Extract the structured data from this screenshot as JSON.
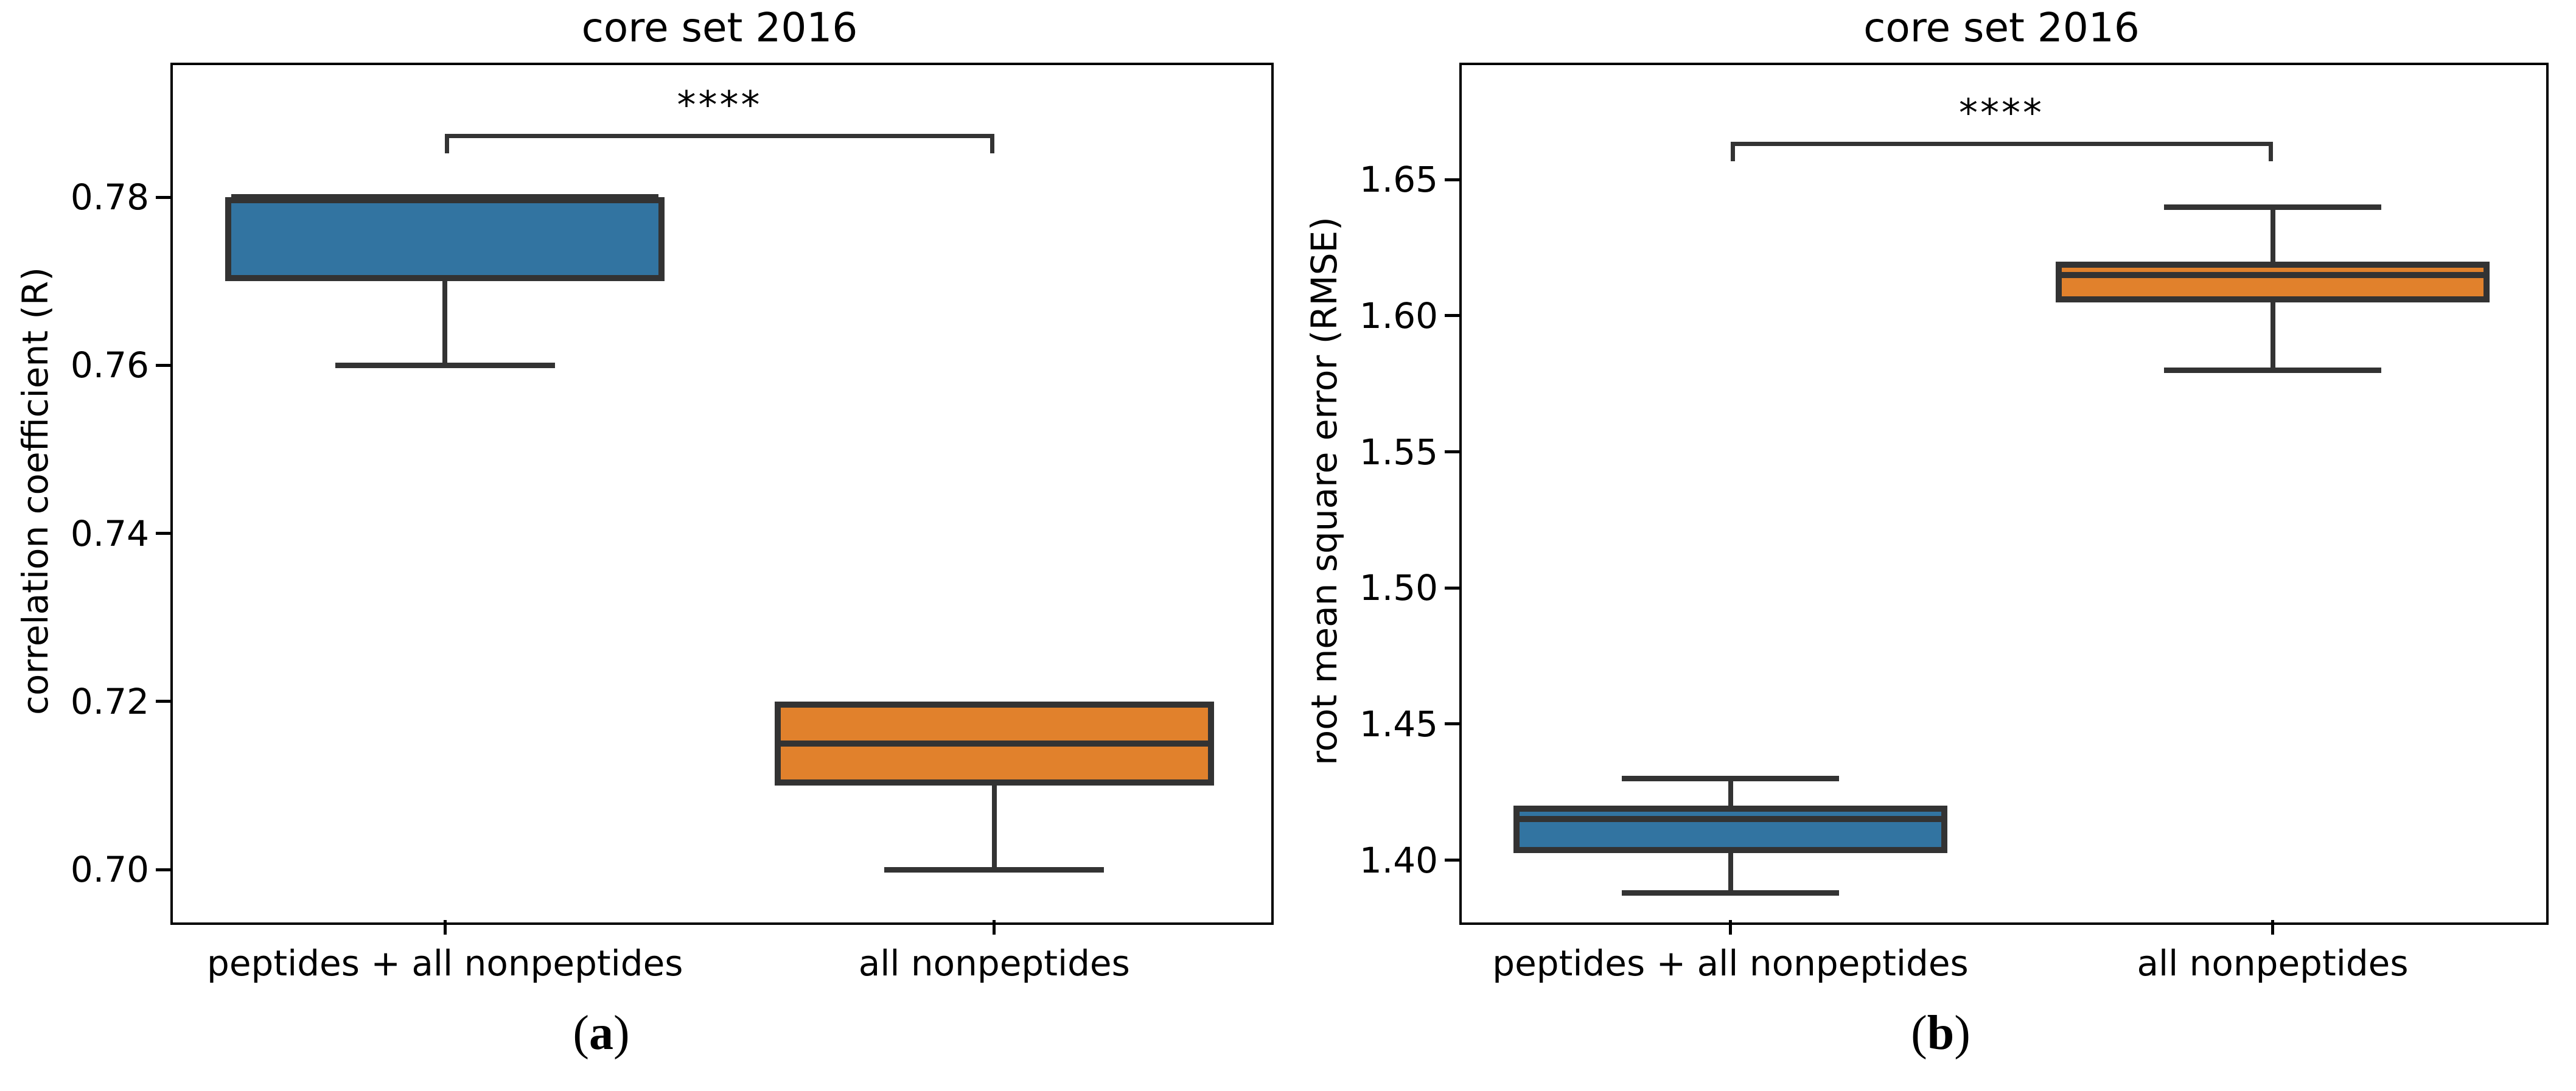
{
  "styles": {
    "background": "#ffffff",
    "box_edge_color": "#333333",
    "spine_color": "#000000",
    "text_color": "#000000",
    "blue_fill": "#3274a1",
    "orange_fill": "#e1812c"
  },
  "chart_data": [
    {
      "type": "box",
      "panel": "a",
      "title": "core set 2016",
      "ylabel": "correlation coefficient (R)",
      "xlabel": "",
      "caption": "(a)",
      "grid": false,
      "legend": "none",
      "categories": [
        "peptides + all nonpeptides",
        "all nonpeptides"
      ],
      "ylim": [
        0.694,
        0.796
      ],
      "yticks": [
        {
          "value": 0.7,
          "label": "0.70"
        },
        {
          "value": 0.72,
          "label": "0.72"
        },
        {
          "value": 0.74,
          "label": "0.74"
        },
        {
          "value": 0.76,
          "label": "0.76"
        },
        {
          "value": 0.78,
          "label": "0.78"
        }
      ],
      "series": [
        {
          "name": "peptides + all nonpeptides",
          "color": "#3274a1",
          "whisker_low": 0.76,
          "q1": 0.77,
          "median": 0.78,
          "q3": 0.78,
          "whisker_high": 0.78
        },
        {
          "name": "all nonpeptides",
          "color": "#e1812c",
          "whisker_low": 0.7,
          "q1": 0.71,
          "median": 0.715,
          "q3": 0.72,
          "whisker_high": 0.72
        }
      ],
      "significance": {
        "label": "****",
        "between": [
          0,
          1
        ],
        "y": 0.7875
      }
    },
    {
      "type": "box",
      "panel": "b",
      "title": "core set 2016",
      "ylabel": "root mean square error (RMSE)",
      "xlabel": "",
      "caption": "(b)",
      "grid": false,
      "legend": "none",
      "categories": [
        "peptides + all nonpeptides",
        "all nonpeptides"
      ],
      "ylim": [
        1.378,
        1.693
      ],
      "yticks": [
        {
          "value": 1.4,
          "label": "1.40"
        },
        {
          "value": 1.45,
          "label": "1.45"
        },
        {
          "value": 1.5,
          "label": "1.50"
        },
        {
          "value": 1.55,
          "label": "1.55"
        },
        {
          "value": 1.6,
          "label": "1.60"
        },
        {
          "value": 1.65,
          "label": "1.65"
        }
      ],
      "series": [
        {
          "name": "peptides + all nonpeptides",
          "color": "#3274a1",
          "whisker_low": 1.388,
          "q1": 1.4025,
          "median": 1.415,
          "q3": 1.42,
          "whisker_high": 1.43
        },
        {
          "name": "all nonpeptides",
          "color": "#e1812c",
          "whisker_low": 1.58,
          "q1": 1.605,
          "median": 1.615,
          "q3": 1.62,
          "whisker_high": 1.64
        }
      ],
      "significance": {
        "label": "****",
        "between": [
          0,
          1
        ],
        "y": 1.664
      }
    }
  ]
}
